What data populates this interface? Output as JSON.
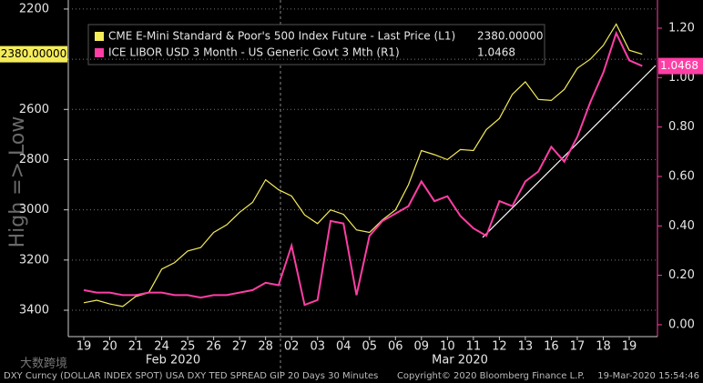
{
  "chart_data": {
    "type": "line",
    "y_axis_title": "High => Low",
    "y_inverted": true,
    "categories": [
      "19",
      null,
      "20",
      null,
      "21",
      null,
      "24",
      null,
      "25",
      null,
      "26",
      null,
      "27",
      null,
      "28",
      null,
      "02",
      null,
      "03",
      null,
      "04",
      null,
      "05",
      null,
      "06",
      null,
      "09",
      null,
      "10",
      null,
      "11",
      null,
      "12",
      null,
      "13",
      null,
      "16",
      null,
      "17",
      null,
      "18",
      null,
      "19",
      null
    ],
    "x_groups": [
      "Feb 2020",
      "Mar 2020"
    ],
    "series": [
      {
        "name": "CME E-Mini Standard & Poor's 500 Index Future - Last Price (L1)",
        "color": "#f5ec5a",
        "axis": "y",
        "last_label": "2380.00000",
        "values": [
          3370,
          3360,
          3375,
          3385,
          3345,
          3330,
          3236,
          3210,
          3164,
          3150,
          3090,
          3060,
          3010,
          2970,
          2880,
          2920,
          2945,
          3020,
          3055,
          3000,
          3018,
          3080,
          3090,
          3040,
          3000,
          2900,
          2764,
          2780,
          2800,
          2760,
          2764,
          2680,
          2636,
          2540,
          2490,
          2560,
          2564,
          2520,
          2436,
          2400,
          2345,
          2260,
          2364,
          2380
        ]
      },
      {
        "name": "ICE LIBOR USD 3 Month - US Generic Govt 3 Mth (R1)",
        "color": "#ff3ea5",
        "axis": "y2",
        "last_label": "1.0468",
        "values": [
          0.14,
          0.13,
          0.13,
          0.12,
          0.12,
          0.13,
          0.13,
          0.12,
          0.12,
          0.11,
          0.12,
          0.12,
          0.13,
          0.14,
          0.17,
          0.16,
          0.32,
          0.08,
          0.1,
          0.42,
          0.41,
          0.12,
          0.36,
          0.42,
          0.45,
          0.48,
          0.58,
          0.5,
          0.52,
          0.44,
          0.39,
          0.36,
          0.5,
          0.48,
          0.58,
          0.62,
          0.72,
          0.66,
          0.76,
          0.9,
          1.02,
          1.18,
          1.07,
          1.0468
        ]
      }
    ],
    "ylim": [
      2164,
      3505
    ],
    "yticks": [
      2200,
      2400,
      2600,
      2800,
      3000,
      3200,
      3400
    ],
    "y2lim": [
      -0.048,
      1.314
    ],
    "y2ticks": [
      {
        "value": 0,
        "label": "0.00"
      },
      {
        "value": 0.2,
        "label": "0.20"
      },
      {
        "value": 0.4,
        "label": "0.40"
      },
      {
        "value": 0.6,
        "label": "0.60"
      },
      {
        "value": 0.8,
        "label": "0.80"
      },
      {
        "value": 1.0,
        "label": "1.00"
      },
      {
        "value": 1.2,
        "label": "1.20"
      }
    ],
    "grid": true
  },
  "footer": {
    "left": "DXY Curncy (DOLLAR INDEX SPOT) USA DXY TED SPREAD GIP 20 Days 30 Minutes",
    "center": "Copyright© 2020 Bloomberg Finance L.P.",
    "right": "19-Mar-2020 15:54:46"
  },
  "watermark": "大数跨境"
}
